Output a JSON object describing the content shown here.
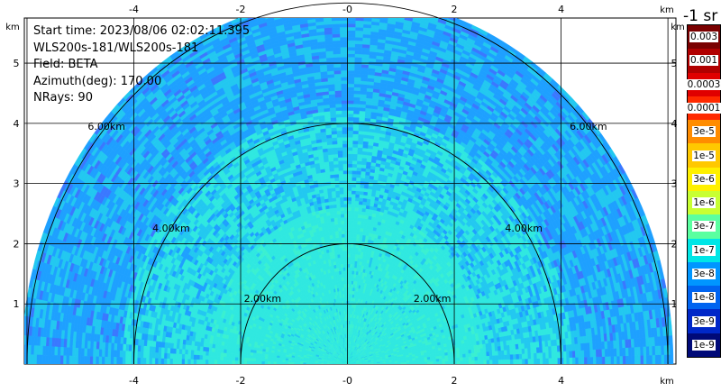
{
  "info": {
    "start_time": "Start time: 2023/08/06 02:02:11.395",
    "instrument": "WLS200s-181/WLS200s-181",
    "field": "Field: BETA",
    "azimuth": "Azimuth(deg): 170.00",
    "nrays": "NRays: 90"
  },
  "axes": {
    "x_unit": "km",
    "y_unit": "km",
    "x_ticks": [
      "-4",
      "-2",
      "-0",
      "2",
      "4"
    ],
    "y_ticks": [
      "1",
      "2",
      "3",
      "4",
      "5"
    ],
    "x_range": [
      -6.05,
      6.15
    ],
    "y_range": [
      0,
      5.75
    ]
  },
  "range_rings": [
    {
      "radius": 2,
      "label": "2.00km"
    },
    {
      "radius": 4,
      "label": "4.00km"
    },
    {
      "radius": 6,
      "label": "6.00km"
    }
  ],
  "colorbar": {
    "title": "-1 sr",
    "labels": [
      "0.003",
      "0.001",
      "0.0003",
      "0.0001",
      "3e-5",
      "1e-5",
      "3e-6",
      "1e-6",
      "3e-7",
      "1e-7",
      "3e-8",
      "1e-8",
      "3e-9",
      "1e-9"
    ],
    "colors": [
      "#7a0000",
      "#b00000",
      "#e00000",
      "#ff2a00",
      "#ff8c00",
      "#ffc800",
      "#fff000",
      "#c8ff32",
      "#5affa0",
      "#00e6e6",
      "#0096ff",
      "#0064f0",
      "#0028c8",
      "#000a78"
    ]
  },
  "colors": {
    "inner": "#2fe8e0",
    "mid": "#22c8f0",
    "outer": "#1ea0ff"
  }
}
